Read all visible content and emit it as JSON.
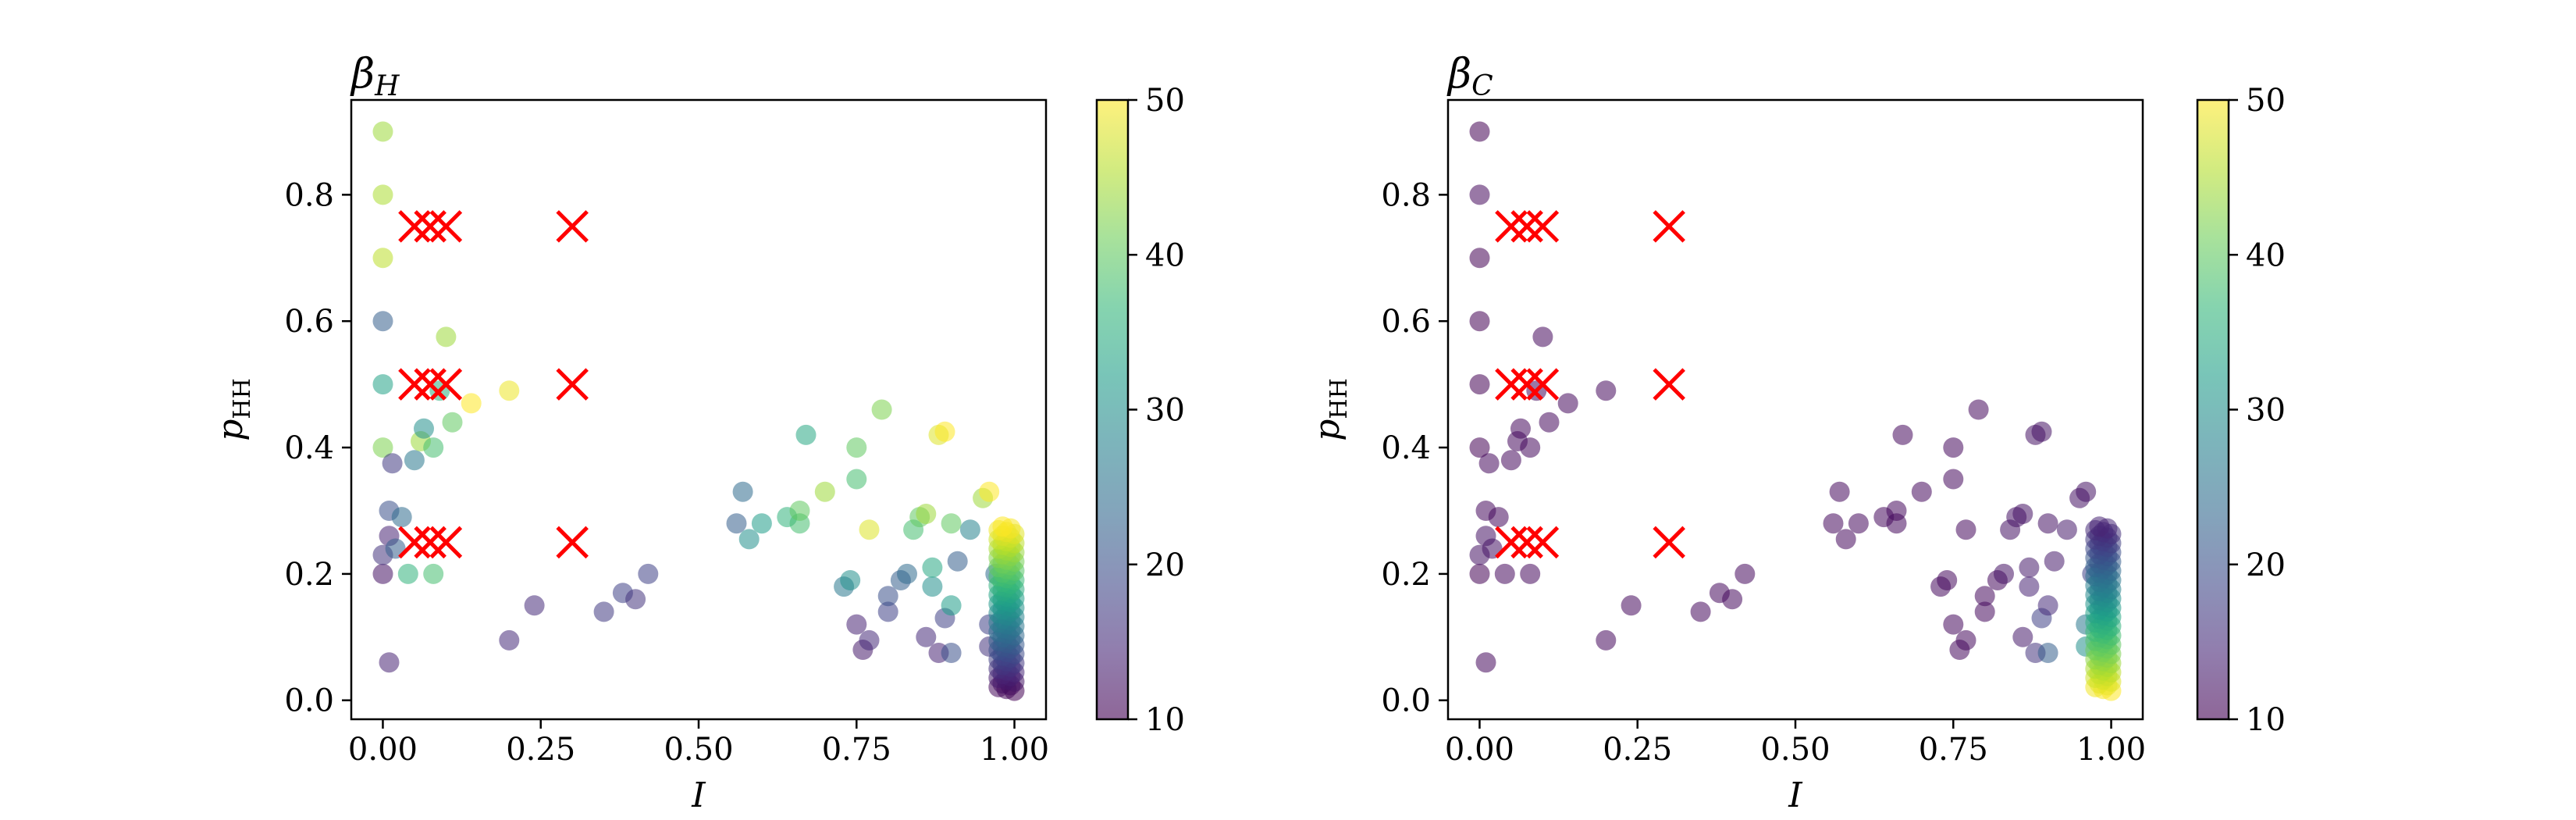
{
  "figure": {
    "marker_color": "#ff0000",
    "colormap": [
      "#440154",
      "#482878",
      "#3e4989",
      "#31688e",
      "#26828e",
      "#1f9e89",
      "#35b779",
      "#6ece58",
      "#b5de2b",
      "#fde725"
    ]
  },
  "chart_data": [
    {
      "type": "scatter",
      "title": "β_H",
      "title_main": "β",
      "title_sub": "H",
      "xlabel": "I",
      "ylabel_main": "p",
      "ylabel_sub": "HH",
      "xlim": [
        -0.05,
        1.05
      ],
      "ylim": [
        -0.03,
        0.95
      ],
      "xticks": [
        0.0,
        0.25,
        0.5,
        0.75,
        1.0
      ],
      "xtick_labels": [
        "0.00",
        "0.25",
        "0.50",
        "0.75",
        "1.00"
      ],
      "yticks": [
        0.0,
        0.2,
        0.4,
        0.6,
        0.8
      ],
      "ytick_labels": [
        "0.0",
        "0.2",
        "0.4",
        "0.6",
        "0.8"
      ],
      "colorbar": {
        "min": 10,
        "max": 50,
        "ticks": [
          10,
          20,
          30,
          40,
          50
        ],
        "tick_labels": [
          "10",
          "20",
          "30",
          "40",
          "50"
        ]
      },
      "points": [
        {
          "x": 0.0,
          "y": 0.9,
          "c": 44
        },
        {
          "x": 0.0,
          "y": 0.8,
          "c": 45
        },
        {
          "x": 0.0,
          "y": 0.7,
          "c": 46
        },
        {
          "x": 0.0,
          "y": 0.6,
          "c": 22
        },
        {
          "x": 0.0,
          "y": 0.5,
          "c": 33
        },
        {
          "x": 0.0,
          "y": 0.4,
          "c": 42
        },
        {
          "x": 0.0,
          "y": 0.2,
          "c": 12
        },
        {
          "x": 0.0,
          "y": 0.23,
          "c": 16
        },
        {
          "x": 0.01,
          "y": 0.3,
          "c": 20
        },
        {
          "x": 0.01,
          "y": 0.26,
          "c": 14
        },
        {
          "x": 0.015,
          "y": 0.375,
          "c": 17
        },
        {
          "x": 0.02,
          "y": 0.24,
          "c": 22
        },
        {
          "x": 0.03,
          "y": 0.29,
          "c": 24
        },
        {
          "x": 0.04,
          "y": 0.2,
          "c": 36
        },
        {
          "x": 0.05,
          "y": 0.38,
          "c": 26
        },
        {
          "x": 0.06,
          "y": 0.41,
          "c": 44
        },
        {
          "x": 0.065,
          "y": 0.43,
          "c": 30
        },
        {
          "x": 0.08,
          "y": 0.2,
          "c": 38
        },
        {
          "x": 0.08,
          "y": 0.4,
          "c": 38
        },
        {
          "x": 0.09,
          "y": 0.49,
          "c": 35
        },
        {
          "x": 0.1,
          "y": 0.575,
          "c": 44
        },
        {
          "x": 0.11,
          "y": 0.44,
          "c": 40
        },
        {
          "x": 0.14,
          "y": 0.47,
          "c": 50
        },
        {
          "x": 0.2,
          "y": 0.49,
          "c": 49
        },
        {
          "x": 0.01,
          "y": 0.06,
          "c": 14
        },
        {
          "x": 0.2,
          "y": 0.095,
          "c": 15
        },
        {
          "x": 0.24,
          "y": 0.15,
          "c": 15
        },
        {
          "x": 0.35,
          "y": 0.14,
          "c": 17
        },
        {
          "x": 0.38,
          "y": 0.17,
          "c": 18
        },
        {
          "x": 0.4,
          "y": 0.16,
          "c": 16
        },
        {
          "x": 0.42,
          "y": 0.2,
          "c": 18
        },
        {
          "x": 0.56,
          "y": 0.28,
          "c": 22
        },
        {
          "x": 0.57,
          "y": 0.33,
          "c": 24
        },
        {
          "x": 0.58,
          "y": 0.255,
          "c": 30
        },
        {
          "x": 0.6,
          "y": 0.28,
          "c": 32
        },
        {
          "x": 0.64,
          "y": 0.29,
          "c": 36
        },
        {
          "x": 0.66,
          "y": 0.28,
          "c": 38
        },
        {
          "x": 0.66,
          "y": 0.3,
          "c": 40
        },
        {
          "x": 0.67,
          "y": 0.42,
          "c": 34
        },
        {
          "x": 0.7,
          "y": 0.33,
          "c": 44
        },
        {
          "x": 0.73,
          "y": 0.18,
          "c": 26
        },
        {
          "x": 0.74,
          "y": 0.19,
          "c": 30
        },
        {
          "x": 0.75,
          "y": 0.35,
          "c": 38
        },
        {
          "x": 0.75,
          "y": 0.4,
          "c": 40
        },
        {
          "x": 0.75,
          "y": 0.12,
          "c": 14
        },
        {
          "x": 0.76,
          "y": 0.08,
          "c": 13
        },
        {
          "x": 0.77,
          "y": 0.27,
          "c": 48
        },
        {
          "x": 0.77,
          "y": 0.095,
          "c": 15
        },
        {
          "x": 0.79,
          "y": 0.46,
          "c": 42
        },
        {
          "x": 0.8,
          "y": 0.14,
          "c": 18
        },
        {
          "x": 0.8,
          "y": 0.165,
          "c": 20
        },
        {
          "x": 0.82,
          "y": 0.19,
          "c": 22
        },
        {
          "x": 0.83,
          "y": 0.2,
          "c": 24
        },
        {
          "x": 0.84,
          "y": 0.27,
          "c": 38
        },
        {
          "x": 0.85,
          "y": 0.29,
          "c": 40
        },
        {
          "x": 0.86,
          "y": 0.295,
          "c": 44
        },
        {
          "x": 0.86,
          "y": 0.1,
          "c": 15
        },
        {
          "x": 0.87,
          "y": 0.18,
          "c": 30
        },
        {
          "x": 0.87,
          "y": 0.21,
          "c": 34
        },
        {
          "x": 0.88,
          "y": 0.075,
          "c": 14
        },
        {
          "x": 0.88,
          "y": 0.42,
          "c": 48
        },
        {
          "x": 0.89,
          "y": 0.425,
          "c": 50
        },
        {
          "x": 0.89,
          "y": 0.13,
          "c": 18
        },
        {
          "x": 0.9,
          "y": 0.075,
          "c": 20
        },
        {
          "x": 0.9,
          "y": 0.15,
          "c": 32
        },
        {
          "x": 0.9,
          "y": 0.28,
          "c": 40
        },
        {
          "x": 0.91,
          "y": 0.22,
          "c": 22
        },
        {
          "x": 0.93,
          "y": 0.27,
          "c": 28
        },
        {
          "x": 0.95,
          "y": 0.32,
          "c": 44
        },
        {
          "x": 0.96,
          "y": 0.33,
          "c": 50
        },
        {
          "x": 0.96,
          "y": 0.085,
          "c": 16
        },
        {
          "x": 0.96,
          "y": 0.12,
          "c": 18
        },
        {
          "x": 0.97,
          "y": 0.2,
          "c": 24
        }
      ],
      "dense_cluster": {
        "x": 1.0,
        "x_min": 0.975,
        "y_min": 0.015,
        "y_max": 0.275,
        "c_at_bottom": 10,
        "c_at_top": 50
      },
      "x_markers": [
        {
          "x": 0.05,
          "y": 0.75
        },
        {
          "x": 0.075,
          "y": 0.75
        },
        {
          "x": 0.1,
          "y": 0.75
        },
        {
          "x": 0.3,
          "y": 0.75
        },
        {
          "x": 0.05,
          "y": 0.5
        },
        {
          "x": 0.075,
          "y": 0.5
        },
        {
          "x": 0.1,
          "y": 0.5
        },
        {
          "x": 0.3,
          "y": 0.5
        },
        {
          "x": 0.05,
          "y": 0.25
        },
        {
          "x": 0.075,
          "y": 0.25
        },
        {
          "x": 0.1,
          "y": 0.25
        },
        {
          "x": 0.3,
          "y": 0.25
        }
      ]
    },
    {
      "type": "scatter",
      "title": "β_C",
      "title_main": "β",
      "title_sub": "C",
      "xlabel": "I",
      "ylabel_main": "p",
      "ylabel_sub": "HH",
      "xlim": [
        -0.05,
        1.05
      ],
      "ylim": [
        -0.03,
        0.95
      ],
      "xticks": [
        0.0,
        0.25,
        0.5,
        0.75,
        1.0
      ],
      "xtick_labels": [
        "0.00",
        "0.25",
        "0.50",
        "0.75",
        "1.00"
      ],
      "yticks": [
        0.0,
        0.2,
        0.4,
        0.6,
        0.8
      ],
      "ytick_labels": [
        "0.0",
        "0.2",
        "0.4",
        "0.6",
        "0.8"
      ],
      "colorbar": {
        "min": 10,
        "max": 50,
        "ticks": [
          10,
          20,
          30,
          40,
          50
        ],
        "tick_labels": [
          "10",
          "20",
          "30",
          "40",
          "50"
        ]
      },
      "points": [
        {
          "x": 0.0,
          "y": 0.9,
          "c": 10
        },
        {
          "x": 0.0,
          "y": 0.8,
          "c": 11
        },
        {
          "x": 0.0,
          "y": 0.7,
          "c": 10
        },
        {
          "x": 0.0,
          "y": 0.6,
          "c": 10
        },
        {
          "x": 0.0,
          "y": 0.5,
          "c": 10
        },
        {
          "x": 0.0,
          "y": 0.4,
          "c": 10
        },
        {
          "x": 0.0,
          "y": 0.2,
          "c": 10
        },
        {
          "x": 0.0,
          "y": 0.23,
          "c": 12
        },
        {
          "x": 0.01,
          "y": 0.3,
          "c": 11
        },
        {
          "x": 0.01,
          "y": 0.26,
          "c": 12
        },
        {
          "x": 0.015,
          "y": 0.375,
          "c": 11
        },
        {
          "x": 0.02,
          "y": 0.24,
          "c": 12
        },
        {
          "x": 0.03,
          "y": 0.29,
          "c": 11
        },
        {
          "x": 0.04,
          "y": 0.2,
          "c": 11
        },
        {
          "x": 0.05,
          "y": 0.38,
          "c": 11
        },
        {
          "x": 0.06,
          "y": 0.41,
          "c": 11
        },
        {
          "x": 0.065,
          "y": 0.43,
          "c": 11
        },
        {
          "x": 0.08,
          "y": 0.2,
          "c": 11
        },
        {
          "x": 0.08,
          "y": 0.4,
          "c": 11
        },
        {
          "x": 0.09,
          "y": 0.49,
          "c": 11
        },
        {
          "x": 0.1,
          "y": 0.575,
          "c": 11
        },
        {
          "x": 0.11,
          "y": 0.44,
          "c": 11
        },
        {
          "x": 0.14,
          "y": 0.47,
          "c": 11
        },
        {
          "x": 0.2,
          "y": 0.49,
          "c": 11
        },
        {
          "x": 0.01,
          "y": 0.06,
          "c": 11
        },
        {
          "x": 0.2,
          "y": 0.095,
          "c": 11
        },
        {
          "x": 0.24,
          "y": 0.15,
          "c": 11
        },
        {
          "x": 0.35,
          "y": 0.14,
          "c": 11
        },
        {
          "x": 0.38,
          "y": 0.17,
          "c": 11
        },
        {
          "x": 0.4,
          "y": 0.16,
          "c": 11
        },
        {
          "x": 0.42,
          "y": 0.2,
          "c": 11
        },
        {
          "x": 0.56,
          "y": 0.28,
          "c": 11
        },
        {
          "x": 0.57,
          "y": 0.33,
          "c": 11
        },
        {
          "x": 0.58,
          "y": 0.255,
          "c": 11
        },
        {
          "x": 0.6,
          "y": 0.28,
          "c": 11
        },
        {
          "x": 0.64,
          "y": 0.29,
          "c": 11
        },
        {
          "x": 0.66,
          "y": 0.28,
          "c": 11
        },
        {
          "x": 0.66,
          "y": 0.3,
          "c": 11
        },
        {
          "x": 0.67,
          "y": 0.42,
          "c": 11
        },
        {
          "x": 0.7,
          "y": 0.33,
          "c": 11
        },
        {
          "x": 0.73,
          "y": 0.18,
          "c": 11
        },
        {
          "x": 0.74,
          "y": 0.19,
          "c": 11
        },
        {
          "x": 0.75,
          "y": 0.35,
          "c": 11
        },
        {
          "x": 0.75,
          "y": 0.4,
          "c": 11
        },
        {
          "x": 0.75,
          "y": 0.12,
          "c": 11
        },
        {
          "x": 0.76,
          "y": 0.08,
          "c": 11
        },
        {
          "x": 0.77,
          "y": 0.27,
          "c": 11
        },
        {
          "x": 0.77,
          "y": 0.095,
          "c": 11
        },
        {
          "x": 0.79,
          "y": 0.46,
          "c": 11
        },
        {
          "x": 0.8,
          "y": 0.14,
          "c": 11
        },
        {
          "x": 0.8,
          "y": 0.165,
          "c": 11
        },
        {
          "x": 0.82,
          "y": 0.19,
          "c": 11
        },
        {
          "x": 0.83,
          "y": 0.2,
          "c": 12
        },
        {
          "x": 0.84,
          "y": 0.27,
          "c": 12
        },
        {
          "x": 0.85,
          "y": 0.29,
          "c": 12
        },
        {
          "x": 0.86,
          "y": 0.295,
          "c": 12
        },
        {
          "x": 0.86,
          "y": 0.1,
          "c": 13
        },
        {
          "x": 0.87,
          "y": 0.18,
          "c": 14
        },
        {
          "x": 0.87,
          "y": 0.21,
          "c": 13
        },
        {
          "x": 0.88,
          "y": 0.075,
          "c": 16
        },
        {
          "x": 0.88,
          "y": 0.42,
          "c": 12
        },
        {
          "x": 0.89,
          "y": 0.425,
          "c": 12
        },
        {
          "x": 0.89,
          "y": 0.13,
          "c": 18
        },
        {
          "x": 0.9,
          "y": 0.075,
          "c": 22
        },
        {
          "x": 0.9,
          "y": 0.15,
          "c": 15
        },
        {
          "x": 0.9,
          "y": 0.28,
          "c": 12
        },
        {
          "x": 0.91,
          "y": 0.22,
          "c": 13
        },
        {
          "x": 0.93,
          "y": 0.27,
          "c": 13
        },
        {
          "x": 0.95,
          "y": 0.32,
          "c": 12
        },
        {
          "x": 0.96,
          "y": 0.33,
          "c": 12
        },
        {
          "x": 0.96,
          "y": 0.085,
          "c": 30
        },
        {
          "x": 0.96,
          "y": 0.12,
          "c": 26
        },
        {
          "x": 0.97,
          "y": 0.2,
          "c": 18
        }
      ],
      "dense_cluster": {
        "x": 1.0,
        "x_min": 0.975,
        "y_min": 0.015,
        "y_max": 0.275,
        "c_at_bottom": 50,
        "c_at_top": 14
      },
      "x_markers": [
        {
          "x": 0.05,
          "y": 0.75
        },
        {
          "x": 0.075,
          "y": 0.75
        },
        {
          "x": 0.1,
          "y": 0.75
        },
        {
          "x": 0.3,
          "y": 0.75
        },
        {
          "x": 0.05,
          "y": 0.5
        },
        {
          "x": 0.075,
          "y": 0.5
        },
        {
          "x": 0.1,
          "y": 0.5
        },
        {
          "x": 0.3,
          "y": 0.5
        },
        {
          "x": 0.05,
          "y": 0.25
        },
        {
          "x": 0.075,
          "y": 0.25
        },
        {
          "x": 0.1,
          "y": 0.25
        },
        {
          "x": 0.3,
          "y": 0.25
        }
      ]
    }
  ]
}
